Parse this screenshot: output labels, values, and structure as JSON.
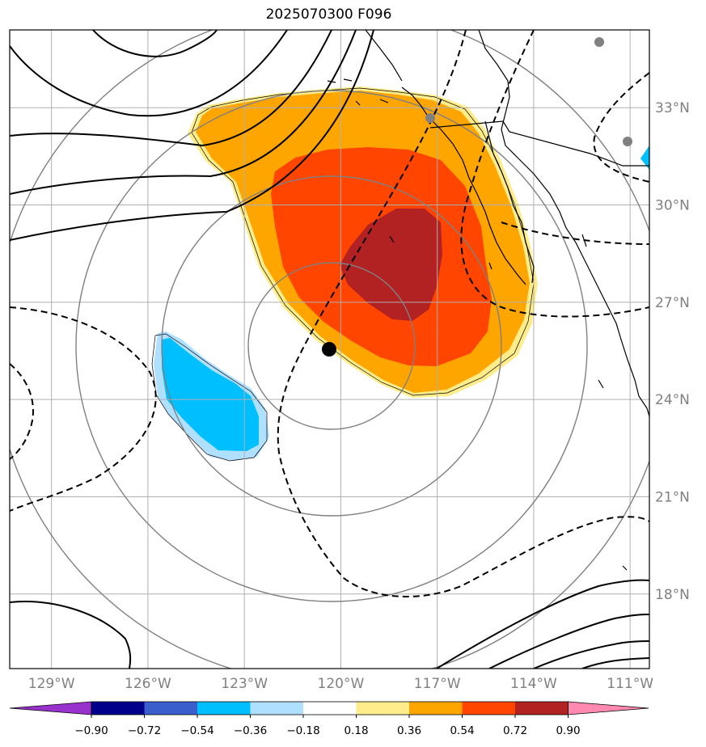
{
  "title": "2025070300 F096",
  "map": {
    "lon_range": [
      -130.3,
      -110.4
    ],
    "lat_range": [
      15.7,
      35.4
    ],
    "storm_center": {
      "lon": -120.3,
      "lat": 25.6
    },
    "lon_ticks": [
      {
        "value": -129,
        "label": "129°W"
      },
      {
        "value": -126,
        "label": "126°W"
      },
      {
        "value": -123,
        "label": "123°W"
      },
      {
        "value": -120,
        "label": "120°W"
      },
      {
        "value": -117,
        "label": "117°W"
      },
      {
        "value": -114,
        "label": "114°W"
      },
      {
        "value": -111,
        "label": "111°W"
      }
    ],
    "lat_ticks": [
      {
        "value": 18,
        "label": "18°N"
      },
      {
        "value": 21,
        "label": "21°N"
      },
      {
        "value": 24,
        "label": "24°N"
      },
      {
        "value": 27,
        "label": "27°N"
      },
      {
        "value": 30,
        "label": "30°N"
      },
      {
        "value": 33,
        "label": "33°N"
      }
    ],
    "gridlines": true,
    "range_rings": 4
  },
  "colorbar": {
    "colors": [
      "#9932cc",
      "#00008b",
      "#3a5fcd",
      "#00bfff",
      "#b0e0ff",
      "#ffffff",
      "#ffec8b",
      "#ffa500",
      "#ff4500",
      "#b22222",
      "#ff89b0"
    ],
    "labels": [
      "−0.90",
      "−0.72",
      "−0.54",
      "−0.36",
      "−0.18",
      "0.18",
      "0.36",
      "0.54",
      "0.72",
      "0.90"
    ]
  },
  "colors": {
    "positive_level_1": "#ffec8b",
    "positive_level_2": "#ffa500",
    "positive_level_3": "#ff4500",
    "positive_level_4": "#b22222",
    "negative_level_1": "#b0e0ff",
    "negative_level_2": "#00bfff",
    "grid": "#b0b0b0",
    "ring": "#808080",
    "contour": "#000000"
  }
}
